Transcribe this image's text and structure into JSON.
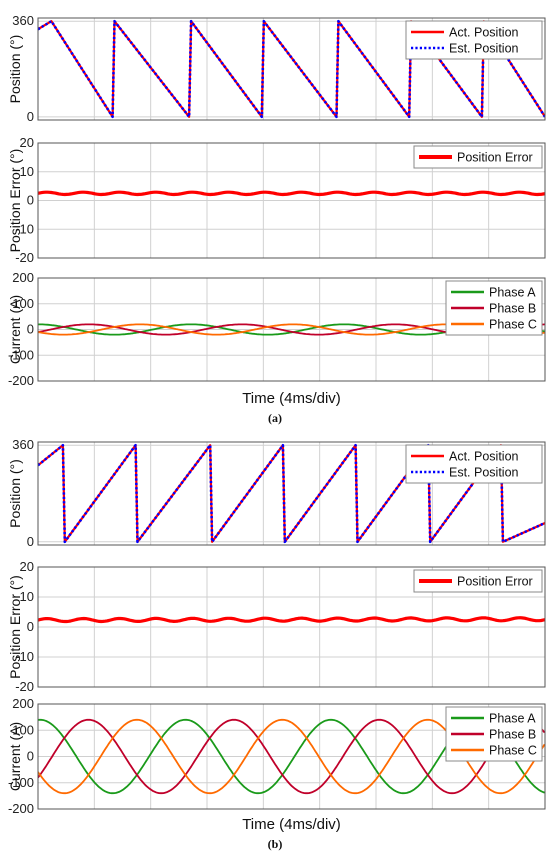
{
  "chart_data": [
    {
      "panel": "(a)",
      "subplots": [
        {
          "type": "line",
          "ylabel": "Position (°)",
          "ylim": [
            -12,
            372
          ],
          "yticks": [
            "0",
            "360"
          ],
          "grid": true,
          "legend": "top-right",
          "series": [
            {
              "name": "Act. Position",
              "color": "#ff0000",
              "style": "solid",
              "x": [
                0,
                0.7,
                3.9,
                4.0,
                7.9,
                8.0,
                11.7,
                11.8,
                15.6,
                15.7,
                19.4,
                19.5,
                23.2,
                23.3,
                26.5
              ],
              "y": [
                330,
                360,
                0,
                360,
                0,
                360,
                0,
                360,
                0,
                360,
                0,
                360,
                0,
                360,
                0
              ]
            },
            {
              "name": "Est. Position",
              "color": "#0000ff",
              "style": "dotted",
              "x": [
                0,
                0.7,
                3.9,
                4.0,
                7.9,
                8.0,
                11.7,
                11.8,
                15.6,
                15.7,
                19.4,
                19.5,
                23.2,
                23.3,
                26.5
              ],
              "y": [
                330,
                360,
                0,
                360,
                0,
                360,
                0,
                360,
                0,
                360,
                0,
                360,
                0,
                360,
                0
              ]
            }
          ]
        },
        {
          "type": "line",
          "ylabel": "Position Error (°)",
          "ylim": [
            -20,
            20
          ],
          "yticks": [
            "-20",
            "-10",
            "0",
            "10",
            "20"
          ],
          "grid": true,
          "legend": "top-right",
          "series": [
            {
              "name": "Position Error",
              "color": "#ff0000",
              "style": "solid",
              "x": [
                0,
                26.5
              ],
              "y": [
                2.5,
                2.5
              ],
              "ripple": 0.4
            }
          ]
        },
        {
          "type": "line",
          "ylabel": "Current (A)",
          "ylim": [
            -200,
            200
          ],
          "yticks": [
            "-200",
            "-100",
            "0",
            "100",
            "200"
          ],
          "grid": true,
          "legend": "top-right",
          "series": [
            {
              "name": "Phase A",
              "color": "#1a9a1a",
              "amplitude": 20,
              "period_ms": 8.0,
              "phase_deg": 90
            },
            {
              "name": "Phase B",
              "color": "#c0002a",
              "amplitude": 20,
              "period_ms": 8.0,
              "phase_deg": -30
            },
            {
              "name": "Phase C",
              "color": "#ff6a00",
              "amplitude": 20,
              "period_ms": 8.0,
              "phase_deg": 210
            }
          ]
        }
      ],
      "xlabel": "Time (4ms/div)",
      "xlim": [
        0,
        26.5
      ]
    },
    {
      "panel": "(b)",
      "subplots": [
        {
          "type": "line",
          "ylabel": "Position (°)",
          "ylim": [
            -12,
            372
          ],
          "yticks": [
            "0",
            "360"
          ],
          "grid": true,
          "legend": "top-right",
          "series": [
            {
              "name": "Act. Position",
              "color": "#ff0000",
              "style": "solid",
              "x": [
                0,
                1.3,
                1.4,
                5.1,
                5.2,
                9.0,
                9.1,
                12.8,
                12.9,
                16.6,
                16.7,
                20.4,
                20.5,
                24.2,
                24.3,
                26.5
              ],
              "y": [
                285,
                360,
                0,
                360,
                0,
                360,
                0,
                360,
                0,
                360,
                0,
                360,
                0,
                360,
                0,
                70
              ]
            },
            {
              "name": "Est. Position",
              "color": "#0000ff",
              "style": "dotted",
              "x": [
                0,
                1.3,
                1.4,
                5.1,
                5.2,
                9.0,
                9.1,
                12.8,
                12.9,
                16.6,
                16.7,
                20.4,
                20.5,
                24.2,
                24.3,
                26.5
              ],
              "y": [
                285,
                360,
                0,
                360,
                0,
                360,
                0,
                360,
                0,
                360,
                0,
                360,
                0,
                360,
                0,
                70
              ]
            }
          ]
        },
        {
          "type": "line",
          "ylabel": "Position Error (°)",
          "ylim": [
            -20,
            20
          ],
          "yticks": [
            "-20",
            "-10",
            "0",
            "10",
            "20"
          ],
          "grid": true,
          "legend": "top-right",
          "series": [
            {
              "name": "Position Error",
              "color": "#ff0000",
              "style": "solid",
              "x": [
                0,
                26.5
              ],
              "y": [
                2.3,
                2.6
              ],
              "ripple": 0.5
            }
          ]
        },
        {
          "type": "line",
          "ylabel": "Current (A)",
          "ylim": [
            -200,
            200
          ],
          "yticks": [
            "-200",
            "-100",
            "0",
            "100",
            "200"
          ],
          "grid": true,
          "legend": "top-right",
          "series": [
            {
              "name": "Phase A",
              "color": "#1a9a1a",
              "amplitude": 140,
              "period_ms": 7.6,
              "phase_deg": 85
            },
            {
              "name": "Phase B",
              "color": "#c0002a",
              "amplitude": 140,
              "period_ms": 7.6,
              "phase_deg": -35
            },
            {
              "name": "Phase C",
              "color": "#ff6a00",
              "amplitude": 140,
              "period_ms": 7.6,
              "phase_deg": 205
            }
          ]
        }
      ],
      "xlabel": "Time (4ms/div)",
      "xlim": [
        0,
        26.5
      ]
    }
  ]
}
